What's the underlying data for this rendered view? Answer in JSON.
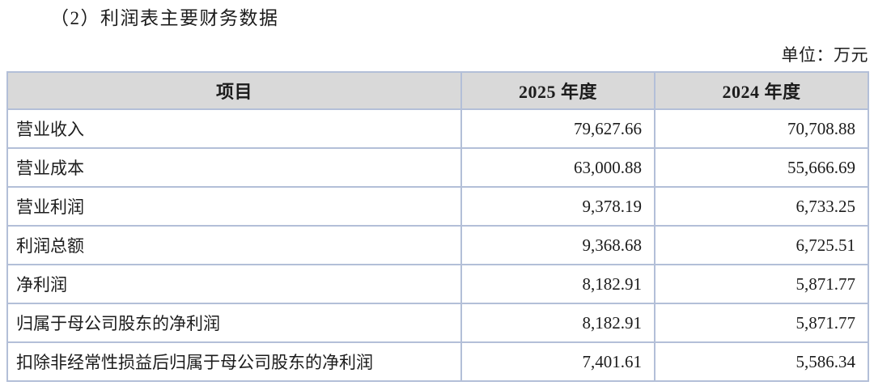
{
  "page": {
    "title": "（2）利润表主要财务数据",
    "unit_label": "单位：万元"
  },
  "colors": {
    "header_background": "#d9d9d9",
    "table_border": "#b3bfd8",
    "text": "#1c1c1c"
  },
  "table": {
    "columns": [
      "项目",
      "2025 年度",
      "2024 年度"
    ],
    "rows": [
      {
        "item": "营业收入",
        "y2025": "79,627.66",
        "y2024": "70,708.88"
      },
      {
        "item": "营业成本",
        "y2025": "63,000.88",
        "y2024": "55,666.69"
      },
      {
        "item": "营业利润",
        "y2025": "9,378.19",
        "y2024": "6,733.25"
      },
      {
        "item": "利润总额",
        "y2025": "9,368.68",
        "y2024": "6,725.51"
      },
      {
        "item": "净利润",
        "y2025": "8,182.91",
        "y2024": "5,871.77"
      },
      {
        "item": "归属于母公司股东的净利润",
        "y2025": "8,182.91",
        "y2024": "5,871.77"
      },
      {
        "item": "扣除非经常性损益后归属于母公司股东的净利润",
        "y2025": "7,401.61",
        "y2024": "5,586.34"
      }
    ]
  }
}
